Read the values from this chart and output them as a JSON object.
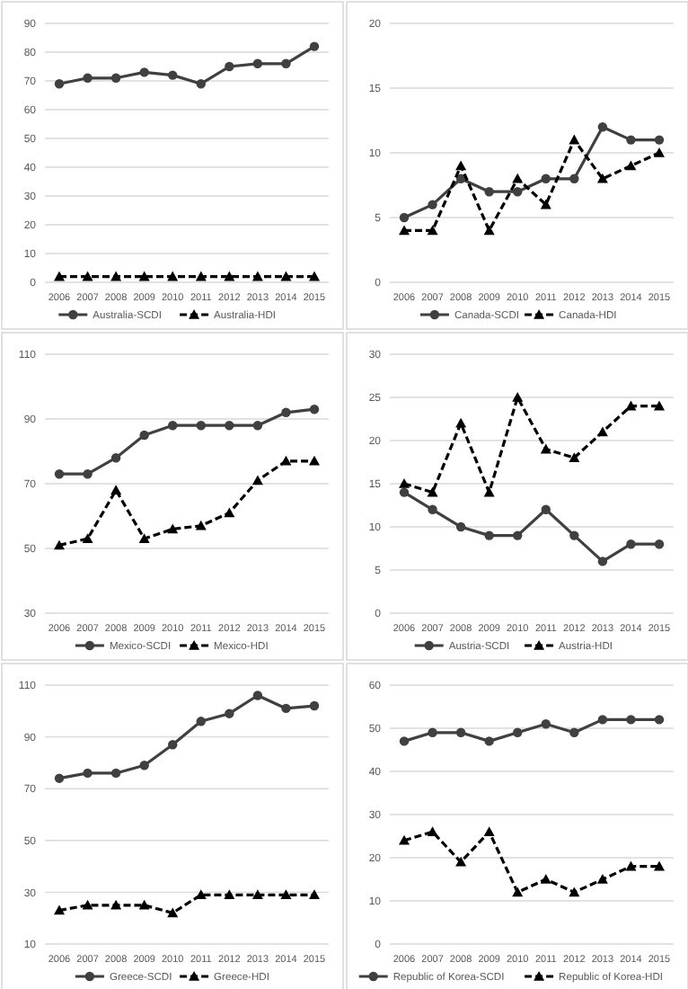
{
  "chart_data": [
    {
      "type": "line",
      "categories": [
        "2006",
        "2007",
        "2008",
        "2009",
        "2010",
        "2011",
        "2012",
        "2013",
        "2014",
        "2015"
      ],
      "ylim": [
        0,
        90
      ],
      "yticks": [
        0,
        10,
        20,
        30,
        40,
        50,
        60,
        70,
        80,
        90
      ],
      "grid": "y",
      "legend": "bottom",
      "series": [
        {
          "name": "Australia-SCDI",
          "color": "#404040",
          "marker": "circle",
          "line_style": "solid",
          "values": [
            69,
            71,
            71,
            73,
            72,
            69,
            75,
            76,
            76,
            82
          ]
        },
        {
          "name": "Australia-HDI",
          "color": "#000000",
          "marker": "triangle",
          "line_style": "dashed",
          "values": [
            2,
            2,
            2,
            2,
            2,
            2,
            2,
            2,
            2,
            2
          ]
        }
      ]
    },
    {
      "type": "line",
      "categories": [
        "2006",
        "2007",
        "2008",
        "2009",
        "2010",
        "2011",
        "2012",
        "2013",
        "2014",
        "2015"
      ],
      "ylim": [
        0,
        20
      ],
      "yticks": [
        0,
        5,
        10,
        15,
        20
      ],
      "grid": "y",
      "legend": "bottom",
      "series": [
        {
          "name": "Canada-SCDI",
          "color": "#404040",
          "marker": "circle",
          "line_style": "solid",
          "values": [
            5,
            6,
            8,
            7,
            7,
            8,
            8,
            12,
            11,
            11
          ]
        },
        {
          "name": "Canada-HDI",
          "color": "#000000",
          "marker": "triangle",
          "line_style": "dashed",
          "values": [
            4,
            4,
            9,
            4,
            8,
            6,
            11,
            8,
            9,
            10
          ]
        }
      ]
    },
    {
      "type": "line",
      "categories": [
        "2006",
        "2007",
        "2008",
        "2009",
        "2010",
        "2011",
        "2012",
        "2013",
        "2014",
        "2015"
      ],
      "ylim": [
        30,
        110
      ],
      "yticks": [
        30,
        50,
        70,
        90,
        110
      ],
      "grid": "y",
      "legend": "bottom",
      "series": [
        {
          "name": "Mexico-SCDI",
          "color": "#404040",
          "marker": "circle",
          "line_style": "solid",
          "values": [
            73,
            73,
            78,
            85,
            88,
            88,
            88,
            88,
            92,
            93
          ]
        },
        {
          "name": "Mexico-HDI",
          "color": "#000000",
          "marker": "triangle",
          "line_style": "dashed",
          "values": [
            51,
            53,
            68,
            53,
            56,
            57,
            61,
            71,
            77,
            77
          ]
        }
      ]
    },
    {
      "type": "line",
      "categories": [
        "2006",
        "2007",
        "2008",
        "2009",
        "2010",
        "2011",
        "2012",
        "2013",
        "2014",
        "2015"
      ],
      "ylim": [
        0,
        30
      ],
      "yticks": [
        0,
        5,
        10,
        15,
        20,
        25,
        30
      ],
      "grid": "y",
      "legend": "bottom",
      "series": [
        {
          "name": "Austria-SCDI",
          "color": "#404040",
          "marker": "circle",
          "line_style": "solid",
          "values": [
            14,
            12,
            10,
            9,
            9,
            12,
            9,
            6,
            8,
            8
          ]
        },
        {
          "name": "Austria-HDI",
          "color": "#000000",
          "marker": "triangle",
          "line_style": "dashed",
          "values": [
            15,
            14,
            22,
            14,
            25,
            19,
            18,
            21,
            24,
            24
          ]
        }
      ]
    },
    {
      "type": "line",
      "categories": [
        "2006",
        "2007",
        "2008",
        "2009",
        "2010",
        "2011",
        "2012",
        "2013",
        "2014",
        "2015"
      ],
      "ylim": [
        10,
        110
      ],
      "yticks": [
        10,
        30,
        50,
        70,
        90,
        110
      ],
      "grid": "y",
      "legend": "bottom",
      "series": [
        {
          "name": "Greece-SCDI",
          "color": "#404040",
          "marker": "circle",
          "line_style": "solid",
          "values": [
            74,
            76,
            76,
            79,
            87,
            96,
            99,
            106,
            101,
            102
          ]
        },
        {
          "name": "Greece-HDI",
          "color": "#000000",
          "marker": "triangle",
          "line_style": "dashed",
          "values": [
            23,
            25,
            25,
            25,
            22,
            29,
            29,
            29,
            29,
            29
          ]
        }
      ]
    },
    {
      "type": "line",
      "categories": [
        "2006",
        "2007",
        "2008",
        "2009",
        "2010",
        "2011",
        "2012",
        "2013",
        "2014",
        "2015"
      ],
      "ylim": [
        0,
        60
      ],
      "yticks": [
        0,
        10,
        20,
        30,
        40,
        50,
        60
      ],
      "grid": "y",
      "legend": "bottom",
      "series": [
        {
          "name": "Republic of Korea-SCDI",
          "color": "#404040",
          "marker": "circle",
          "line_style": "solid",
          "values": [
            47,
            49,
            49,
            47,
            49,
            51,
            49,
            52,
            52,
            52
          ]
        },
        {
          "name": "Republic of Korea-HDI",
          "color": "#000000",
          "marker": "triangle",
          "line_style": "dashed",
          "values": [
            24,
            26,
            19,
            26,
            12,
            15,
            12,
            15,
            18,
            18
          ]
        }
      ]
    }
  ]
}
